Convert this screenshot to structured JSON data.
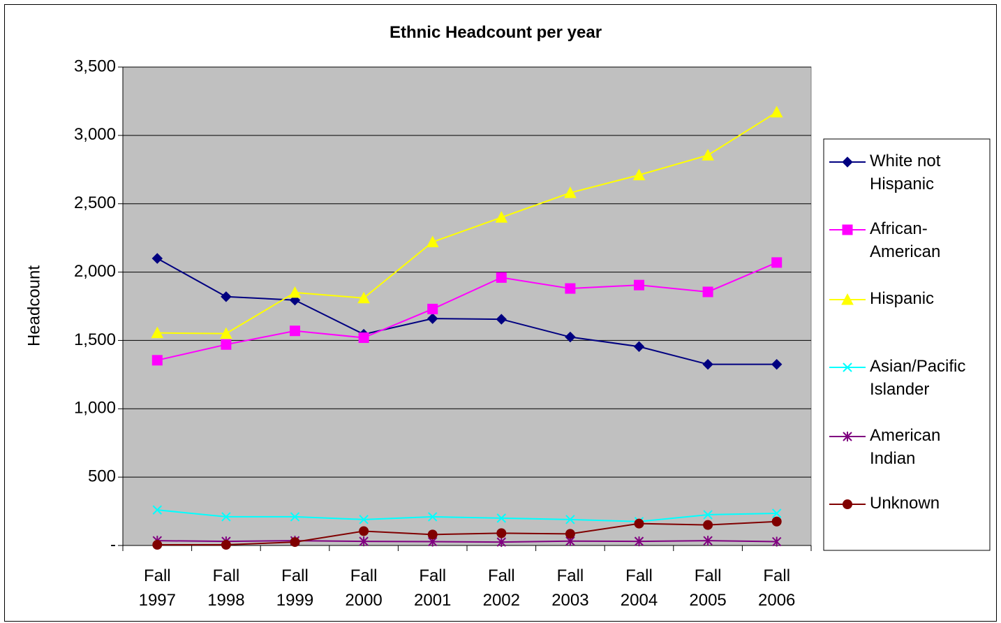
{
  "chart_data": {
    "type": "line",
    "title": "Ethnic Headcount per year",
    "xlabel": "",
    "ylabel": "Headcount",
    "ylim": [
      0,
      3500
    ],
    "yticks": [
      0,
      500,
      1000,
      1500,
      2000,
      2500,
      3000,
      3500
    ],
    "ytick_labels": [
      "-",
      "500",
      "1,000",
      "1,500",
      "2,000",
      "2,500",
      "3,000",
      "3,500"
    ],
    "categories": [
      [
        "Fall",
        "1997"
      ],
      [
        "Fall",
        "1998"
      ],
      [
        "Fall",
        "1999"
      ],
      [
        "Fall",
        "2000"
      ],
      [
        "Fall",
        "2001"
      ],
      [
        "Fall",
        "2002"
      ],
      [
        "Fall",
        "2003"
      ],
      [
        "Fall",
        "2004"
      ],
      [
        "Fall",
        "2005"
      ],
      [
        "Fall",
        "2006"
      ]
    ],
    "grid": true,
    "plot_background": "#c0c0c0",
    "legend_position": "right",
    "series": [
      {
        "name": [
          "White not",
          "Hispanic"
        ],
        "color": "#000080",
        "marker": "diamond",
        "values": [
          2100,
          1820,
          1795,
          1545,
          1660,
          1655,
          1525,
          1455,
          1325,
          1325
        ]
      },
      {
        "name": [
          "African-",
          "American"
        ],
        "color": "#ff00ff",
        "marker": "square",
        "values": [
          1355,
          1470,
          1570,
          1520,
          1730,
          1960,
          1880,
          1905,
          1855,
          2070
        ]
      },
      {
        "name": [
          "Hispanic"
        ],
        "color": "#ffff00",
        "marker": "triangle",
        "values": [
          1555,
          1550,
          1850,
          1810,
          2220,
          2400,
          2580,
          2710,
          2855,
          3170
        ]
      },
      {
        "name": [
          "Asian/Pacific",
          "Islander"
        ],
        "color": "#00ffff",
        "marker": "x",
        "values": [
          260,
          210,
          210,
          190,
          210,
          200,
          190,
          175,
          225,
          235
        ]
      },
      {
        "name": [
          "American",
          "Indian"
        ],
        "color": "#800080",
        "marker": "star",
        "values": [
          35,
          30,
          35,
          30,
          28,
          25,
          32,
          30,
          35,
          28
        ]
      },
      {
        "name": [
          "Unknown"
        ],
        "color": "#800000",
        "marker": "circle",
        "values": [
          5,
          5,
          25,
          105,
          80,
          90,
          85,
          160,
          150,
          175
        ]
      }
    ]
  }
}
